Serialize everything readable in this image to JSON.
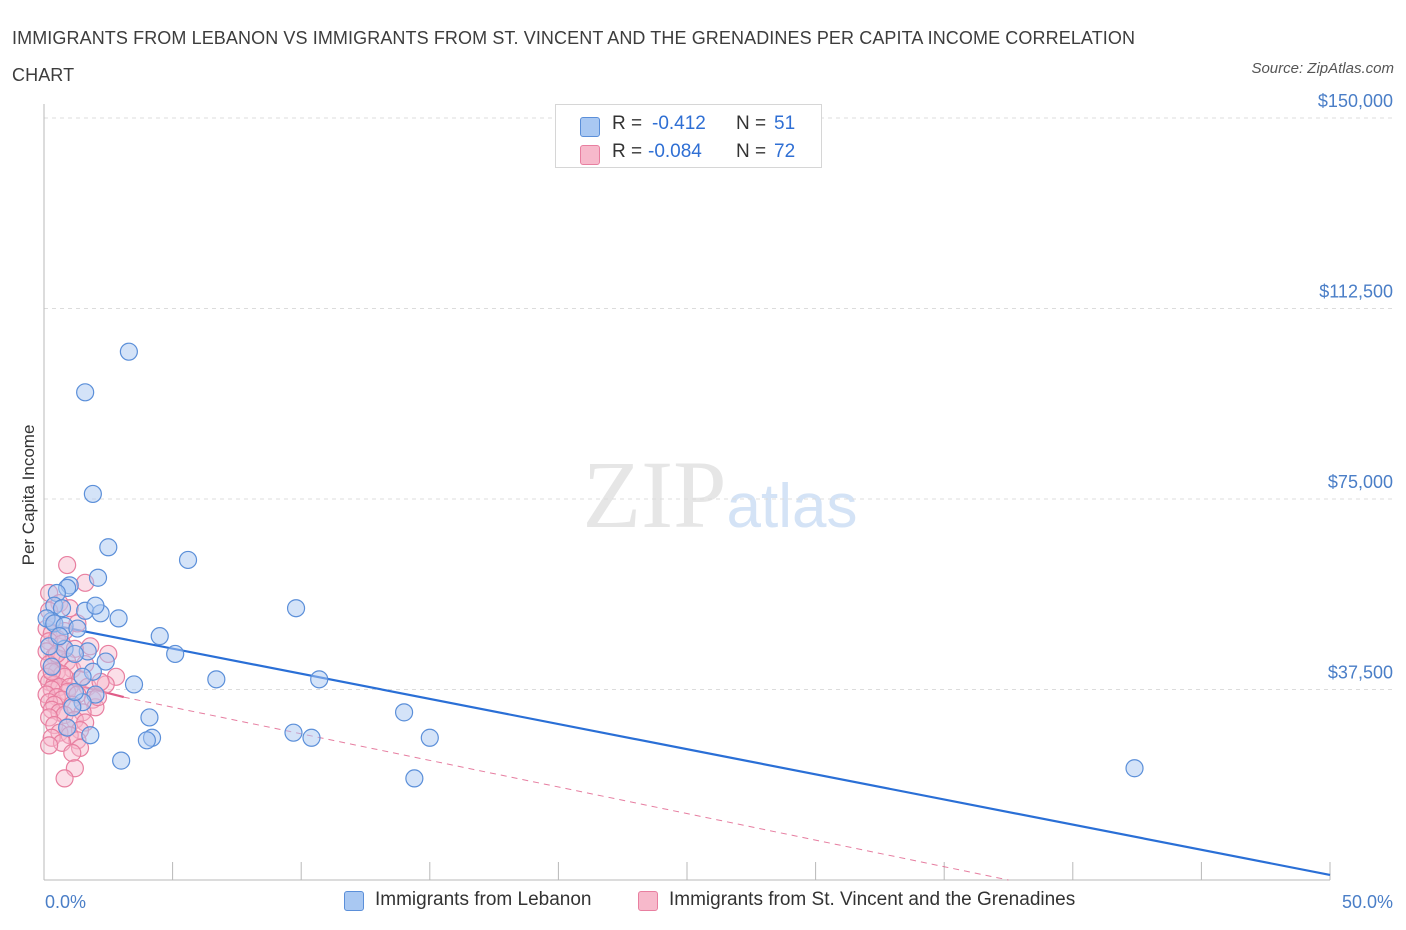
{
  "title": "IMMIGRANTS FROM LEBANON VS IMMIGRANTS FROM ST. VINCENT AND THE GRENADINES PER CAPITA INCOME CORRELATION CHART",
  "source": "Source: ZipAtlas.com",
  "watermark": "ZIPatlas",
  "colors": {
    "series1_fill": "#a9c8f2",
    "series1_stroke": "#5b8fd9",
    "series1_line": "#2a6fd6",
    "series2_fill": "#f7b9cb",
    "series2_stroke": "#e87fa0",
    "series2_line": "#e05c88",
    "axis_label": "#4a7ec7",
    "grid": "#dcdcdc"
  },
  "legend": {
    "rows": [
      {
        "r_label": "R =",
        "r_value": "-0.412",
        "n_label": "N =",
        "n_value": "51"
      },
      {
        "r_label": "R =",
        "r_value": "-0.084",
        "n_label": "N =",
        "n_value": "72"
      }
    ]
  },
  "chart_data": {
    "type": "scatter",
    "title": "IMMIGRANTS FROM LEBANON VS IMMIGRANTS FROM ST. VINCENT AND THE GRENADINES PER CAPITA INCOME CORRELATION CHART",
    "xlabel": "",
    "ylabel": "Per Capita Income",
    "xlim": [
      0,
      50
    ],
    "ylim": [
      0,
      150000
    ],
    "x_tick_labels": [
      "0.0%",
      "50.0%"
    ],
    "y_ticks": [
      37500,
      75000,
      112500,
      150000
    ],
    "y_tick_labels": [
      "$37,500",
      "$75,000",
      "$112,500",
      "$150,000"
    ],
    "series": [
      {
        "name": "Immigrants from Lebanon",
        "r": -0.412,
        "n": 51,
        "trend": {
          "x0": 0.0,
          "y0": 50500,
          "x1": 50.0,
          "y1": 1000,
          "style": "solid"
        },
        "points": [
          [
            3.3,
            104000
          ],
          [
            1.6,
            96000
          ],
          [
            1.9,
            76000
          ],
          [
            2.5,
            65500
          ],
          [
            5.6,
            63000
          ],
          [
            2.1,
            59500
          ],
          [
            1.0,
            58000
          ],
          [
            0.9,
            57500
          ],
          [
            0.5,
            56500
          ],
          [
            0.4,
            54000
          ],
          [
            0.7,
            53500
          ],
          [
            1.6,
            53000
          ],
          [
            2.2,
            52500
          ],
          [
            2.0,
            54000
          ],
          [
            9.8,
            53500
          ],
          [
            0.3,
            51000
          ],
          [
            0.1,
            51500
          ],
          [
            0.4,
            50500
          ],
          [
            2.9,
            51500
          ],
          [
            0.8,
            50000
          ],
          [
            1.3,
            49500
          ],
          [
            4.5,
            48000
          ],
          [
            0.8,
            45500
          ],
          [
            1.7,
            45000
          ],
          [
            1.2,
            44500
          ],
          [
            5.1,
            44500
          ],
          [
            1.9,
            41000
          ],
          [
            6.7,
            39500
          ],
          [
            10.7,
            39500
          ],
          [
            3.5,
            38500
          ],
          [
            2.0,
            36500
          ],
          [
            1.5,
            35000
          ],
          [
            1.1,
            34000
          ],
          [
            14.0,
            33000
          ],
          [
            4.1,
            32000
          ],
          [
            1.8,
            28500
          ],
          [
            4.2,
            28000
          ],
          [
            4.0,
            27500
          ],
          [
            9.7,
            29000
          ],
          [
            10.4,
            28000
          ],
          [
            15.0,
            28000
          ],
          [
            3.0,
            23500
          ],
          [
            14.4,
            20000
          ],
          [
            42.4,
            22000
          ],
          [
            0.2,
            46000
          ],
          [
            0.6,
            48000
          ],
          [
            0.3,
            42000
          ],
          [
            1.2,
            37000
          ],
          [
            0.9,
            30000
          ],
          [
            1.5,
            40000
          ],
          [
            2.4,
            43000
          ]
        ]
      },
      {
        "name": "Immigrants from St. Vincent and the Grenadines",
        "r": -0.084,
        "n": 72,
        "trend": {
          "x0": 0.0,
          "y0": 40000,
          "x1": 3.1,
          "y1": 36000,
          "style": "solid"
        },
        "trend_extended": {
          "x0": 3.1,
          "y0": 36000,
          "x1": 37.5,
          "y1": 0,
          "style": "dashed"
        },
        "points": [
          [
            0.9,
            62000
          ],
          [
            1.6,
            58500
          ],
          [
            0.2,
            56500
          ],
          [
            0.6,
            54500
          ],
          [
            1.0,
            53500
          ],
          [
            0.2,
            53000
          ],
          [
            0.4,
            50500
          ],
          [
            1.3,
            50500
          ],
          [
            0.1,
            49500
          ],
          [
            0.8,
            49000
          ],
          [
            0.3,
            48500
          ],
          [
            0.5,
            47500
          ],
          [
            0.2,
            47000
          ],
          [
            0.7,
            46500
          ],
          [
            1.8,
            46000
          ],
          [
            1.2,
            45500
          ],
          [
            0.1,
            45000
          ],
          [
            2.5,
            44500
          ],
          [
            0.4,
            44000
          ],
          [
            0.6,
            43500
          ],
          [
            0.9,
            43000
          ],
          [
            0.2,
            42500
          ],
          [
            0.3,
            42000
          ],
          [
            1.1,
            41500
          ],
          [
            0.5,
            41000
          ],
          [
            0.7,
            40500
          ],
          [
            0.1,
            40000
          ],
          [
            0.8,
            40000
          ],
          [
            1.4,
            39500
          ],
          [
            2.8,
            40000
          ],
          [
            0.2,
            39000
          ],
          [
            0.4,
            38500
          ],
          [
            0.6,
            38000
          ],
          [
            1.0,
            38000
          ],
          [
            1.7,
            38000
          ],
          [
            2.4,
            38500
          ],
          [
            0.3,
            37500
          ],
          [
            0.9,
            37000
          ],
          [
            0.1,
            36500
          ],
          [
            1.3,
            36500
          ],
          [
            0.5,
            36000
          ],
          [
            0.7,
            35500
          ],
          [
            1.9,
            35500
          ],
          [
            0.2,
            35000
          ],
          [
            0.4,
            34500
          ],
          [
            1.1,
            34500
          ],
          [
            2.0,
            34000
          ],
          [
            0.3,
            33500
          ],
          [
            0.6,
            33000
          ],
          [
            1.5,
            33000
          ],
          [
            0.8,
            32500
          ],
          [
            0.2,
            32000
          ],
          [
            1.2,
            31500
          ],
          [
            1.6,
            31000
          ],
          [
            0.4,
            30500
          ],
          [
            0.9,
            30000
          ],
          [
            1.4,
            29500
          ],
          [
            0.6,
            29000
          ],
          [
            1.0,
            28500
          ],
          [
            0.3,
            28000
          ],
          [
            1.3,
            27500
          ],
          [
            0.7,
            27000
          ],
          [
            0.2,
            26500
          ],
          [
            1.4,
            26000
          ],
          [
            1.1,
            25000
          ],
          [
            1.2,
            22000
          ],
          [
            0.8,
            20000
          ],
          [
            2.1,
            36000
          ],
          [
            1.6,
            42500
          ],
          [
            0.5,
            44500
          ],
          [
            2.2,
            39000
          ],
          [
            0.3,
            41000
          ]
        ]
      }
    ]
  }
}
